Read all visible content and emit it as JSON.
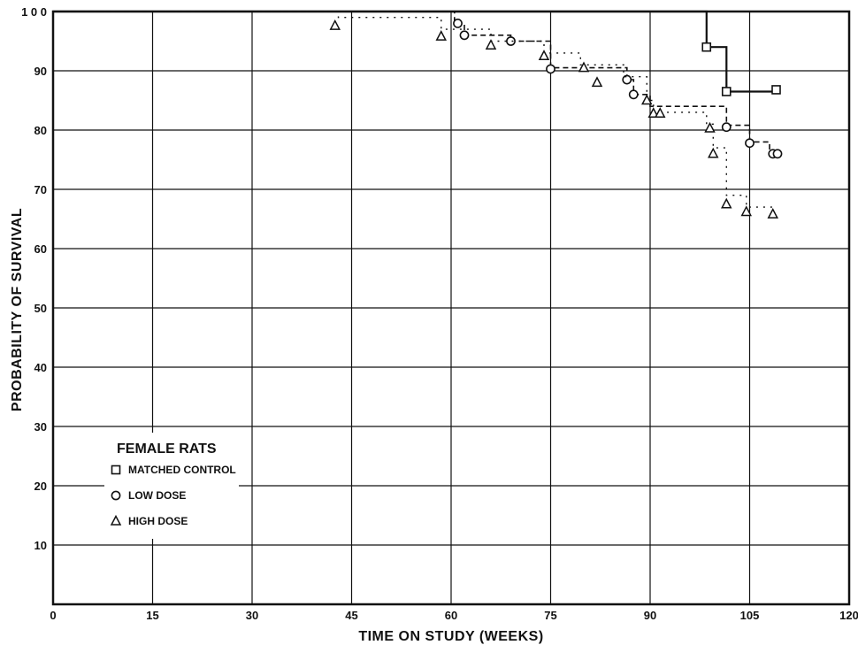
{
  "chart_data": {
    "type": "line",
    "title": "",
    "xlabel": "TIME ON STUDY (WEEKS)",
    "ylabel": "PROBABILITY OF SURVIVAL",
    "xlim": [
      0,
      120
    ],
    "ylim": [
      0,
      100
    ],
    "x_ticks": [
      "0",
      "15",
      "30",
      "45",
      "60",
      "75",
      "90",
      "105",
      "120"
    ],
    "y_ticks": [
      "10",
      "20",
      "30",
      "40",
      "50",
      "60",
      "70",
      "80",
      "90",
      "1 0 0"
    ],
    "grid": true,
    "legend": {
      "title": "FEMALE RATS",
      "placement": "lower-left",
      "entries": [
        {
          "marker": "square",
          "label": "MATCHED CONTROL"
        },
        {
          "marker": "circle",
          "label": "LOW DOSE"
        },
        {
          "marker": "triangle",
          "label": "HIGH DOSE"
        }
      ]
    },
    "series": [
      {
        "name": "MATCHED CONTROL",
        "marker": "square",
        "line_style": "solid",
        "steps": [
          [
            0,
            100
          ],
          [
            98.5,
            100
          ],
          [
            98.5,
            94
          ],
          [
            101.5,
            94
          ],
          [
            101.5,
            86.5
          ],
          [
            109,
            86.5
          ]
        ],
        "markers": [
          [
            98.5,
            94
          ],
          [
            101.5,
            86.5
          ],
          [
            109,
            86.8
          ]
        ]
      },
      {
        "name": "LOW DOSE",
        "marker": "circle",
        "line_style": "dashed",
        "steps": [
          [
            0,
            100
          ],
          [
            60.5,
            100
          ],
          [
            60.5,
            98
          ],
          [
            62,
            98
          ],
          [
            62,
            96
          ],
          [
            69,
            96
          ],
          [
            69,
            95
          ],
          [
            75,
            95
          ],
          [
            75,
            90.5
          ],
          [
            86.5,
            90.5
          ],
          [
            86.5,
            88.5
          ],
          [
            87.5,
            88.5
          ],
          [
            87.5,
            86
          ],
          [
            90,
            86
          ],
          [
            90,
            84
          ],
          [
            101.5,
            84
          ],
          [
            101.5,
            80.8
          ],
          [
            105,
            80.8
          ],
          [
            105,
            78
          ],
          [
            108,
            78
          ],
          [
            108,
            76
          ],
          [
            109,
            76
          ]
        ],
        "markers": [
          [
            61,
            98
          ],
          [
            62,
            96
          ],
          [
            69,
            95
          ],
          [
            75,
            90.3
          ],
          [
            86.5,
            88.5
          ],
          [
            87.5,
            86
          ],
          [
            101.5,
            80.5
          ],
          [
            105,
            77.8
          ],
          [
            108.5,
            76
          ],
          [
            109.2,
            76
          ]
        ]
      },
      {
        "name": "HIGH DOSE",
        "marker": "triangle",
        "line_style": "dotted",
        "steps": [
          [
            0,
            100
          ],
          [
            43,
            100
          ],
          [
            43,
            99
          ],
          [
            58.5,
            99
          ],
          [
            58.5,
            97
          ],
          [
            66,
            97
          ],
          [
            66,
            95
          ],
          [
            74,
            95
          ],
          [
            74,
            93
          ],
          [
            79.5,
            93
          ],
          [
            79.5,
            91
          ],
          [
            86,
            91
          ],
          [
            86,
            89
          ],
          [
            89.5,
            89
          ],
          [
            89.5,
            85
          ],
          [
            90.5,
            85
          ],
          [
            90.5,
            83
          ],
          [
            98.5,
            83
          ],
          [
            98.5,
            81
          ],
          [
            99.5,
            81
          ],
          [
            99.5,
            77
          ],
          [
            101.5,
            77
          ],
          [
            101.5,
            69
          ],
          [
            104.5,
            69
          ],
          [
            104.5,
            67
          ],
          [
            108.5,
            67
          ]
        ],
        "markers": [
          [
            42.5,
            97.6
          ],
          [
            58.5,
            95.8
          ],
          [
            66,
            94.3
          ],
          [
            74,
            92.5
          ],
          [
            80,
            90.5
          ],
          [
            82,
            88
          ],
          [
            89.5,
            85
          ],
          [
            90.5,
            82.8
          ],
          [
            91.5,
            82.8
          ],
          [
            99,
            80.3
          ],
          [
            99.5,
            76
          ],
          [
            101.5,
            67.5
          ],
          [
            104.5,
            66.2
          ],
          [
            108.5,
            65.8
          ]
        ]
      }
    ]
  }
}
